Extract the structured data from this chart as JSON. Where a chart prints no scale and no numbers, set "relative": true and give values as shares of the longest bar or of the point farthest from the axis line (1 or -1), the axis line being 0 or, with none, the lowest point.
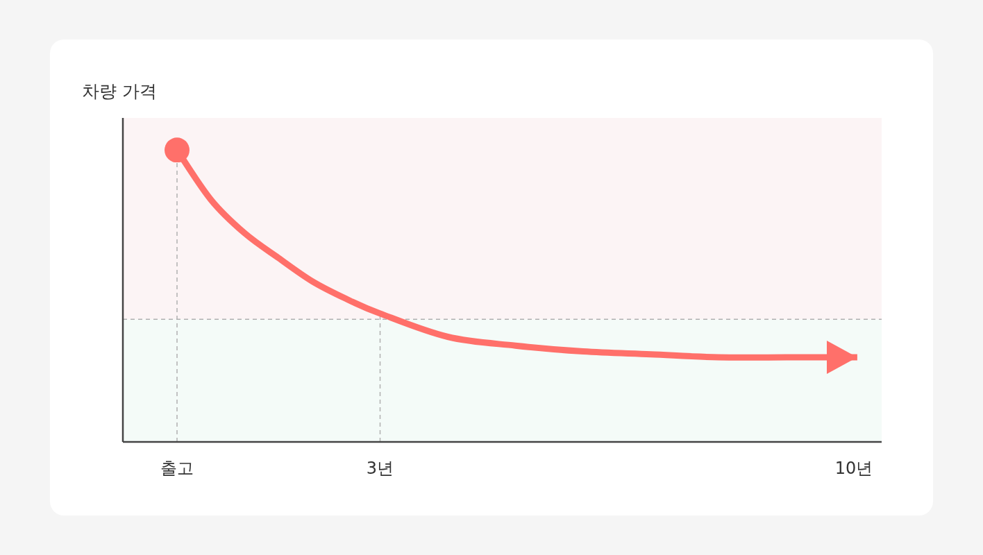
{
  "chart_data": {
    "type": "line",
    "relative": true,
    "title": "차량 가격",
    "xlim": [
      -0.8,
      10.41
    ],
    "xticks": [
      {
        "value": 0,
        "label": "출고"
      },
      {
        "value": 3,
        "label": "3년"
      },
      {
        "value": 10,
        "label": "10년"
      }
    ],
    "series": [
      {
        "color": "#ff706a",
        "x": [
          0,
          0.5,
          1,
          1.5,
          2,
          2.5,
          3,
          4,
          5,
          6,
          7,
          8,
          9,
          9.5,
          10.05
        ],
        "values": [
          1.0,
          0.83,
          0.715,
          0.63,
          0.55,
          0.49,
          0.44,
          0.36,
          0.33,
          0.31,
          0.3,
          0.29,
          0.29,
          0.29,
          0.29
        ]
      }
    ],
    "ref_lines": [
      {
        "axis": "y",
        "value": 0.42,
        "color": "#b0b0b0",
        "line_style": "dashed"
      },
      {
        "axis": "x",
        "value": 0,
        "color": "#b0b0b0",
        "line_style": "dashed"
      },
      {
        "axis": "x",
        "value": 3,
        "color": "#b0b0b0",
        "line_style": "dashed"
      }
    ],
    "bands": [
      {
        "axis": "y",
        "from": 0.42,
        "to": 1.11,
        "color": "#fcf4f5"
      },
      {
        "axis": "y",
        "from": 0,
        "to": 0.42,
        "color": "#f4fbf8"
      }
    ]
  }
}
